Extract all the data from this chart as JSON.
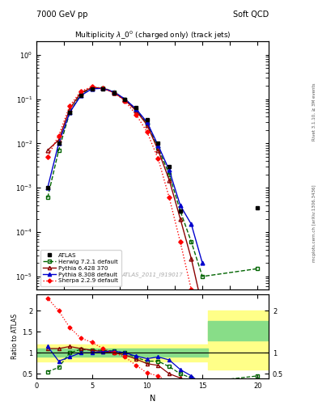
{
  "title_top_left": "7000 GeV pp",
  "title_top_right": "Soft QCD",
  "main_title": "Multiplicity $\\lambda\\_0^0$ (charged only) (track jets)",
  "watermark": "ATLAS_2011_I919017",
  "right_label_top": "Rivet 3.1.10, ≥ 3M events",
  "right_label_bottom": "mcplots.cern.ch [arXiv:1306.3436]",
  "xlabel": "N",
  "ylabel_ratio": "Ratio to ATLAS",
  "atlas_x": [
    1,
    2,
    3,
    4,
    5,
    6,
    7,
    8,
    9,
    10,
    11,
    12,
    13,
    20
  ],
  "atlas_y": [
    0.001,
    0.01,
    0.05,
    0.12,
    0.17,
    0.17,
    0.14,
    0.1,
    0.065,
    0.035,
    0.01,
    0.003,
    0.0003,
    0.00035
  ],
  "herwig_x": [
    1,
    2,
    3,
    4,
    5,
    6,
    7,
    8,
    9,
    10,
    11,
    12,
    13,
    14,
    15,
    20
  ],
  "herwig_y": [
    0.0006,
    0.007,
    0.05,
    0.13,
    0.18,
    0.18,
    0.145,
    0.1,
    0.058,
    0.028,
    0.008,
    0.002,
    0.0003,
    6e-05,
    1e-05,
    1.5e-05
  ],
  "pythia6_x": [
    1,
    2,
    3,
    4,
    5,
    6,
    7,
    8,
    9,
    10,
    11,
    12,
    13,
    14,
    15
  ],
  "pythia6_y": [
    0.007,
    0.012,
    0.06,
    0.14,
    0.18,
    0.175,
    0.14,
    0.095,
    0.055,
    0.026,
    0.007,
    0.0015,
    0.0002,
    2.5e-05,
    2e-06
  ],
  "pythia8_x": [
    1,
    2,
    3,
    4,
    5,
    6,
    7,
    8,
    9,
    10,
    11,
    12,
    13,
    14,
    15
  ],
  "pythia8_y": [
    0.001,
    0.01,
    0.05,
    0.12,
    0.17,
    0.175,
    0.145,
    0.1,
    0.06,
    0.03,
    0.009,
    0.0025,
    0.0004,
    0.00015,
    2e-05
  ],
  "sherpa_x": [
    1,
    2,
    3,
    4,
    5,
    6,
    7,
    8,
    9,
    10,
    11,
    12,
    13,
    14,
    15
  ],
  "sherpa_y": [
    0.005,
    0.015,
    0.07,
    0.15,
    0.19,
    0.175,
    0.14,
    0.09,
    0.045,
    0.018,
    0.0045,
    0.0006,
    6e-05,
    5e-06,
    3e-07
  ],
  "ratio_herwig_x": [
    1,
    2,
    3,
    4,
    5,
    6,
    7,
    8,
    9,
    10,
    11,
    12,
    13,
    14,
    15,
    20
  ],
  "ratio_herwig_y": [
    0.55,
    0.65,
    1.0,
    1.08,
    1.06,
    1.06,
    1.04,
    1.0,
    0.89,
    0.8,
    0.8,
    0.67,
    0.5,
    0.4,
    0.3,
    0.45
  ],
  "ratio_pythia6_x": [
    1,
    2,
    3,
    4,
    5,
    6,
    7,
    8,
    9,
    10,
    11,
    12,
    13,
    14,
    15
  ],
  "ratio_pythia6_y": [
    1.1,
    1.1,
    1.15,
    1.1,
    1.06,
    1.03,
    1.0,
    0.95,
    0.85,
    0.74,
    0.7,
    0.5,
    0.4,
    0.25,
    0.15
  ],
  "ratio_pythia8_x": [
    1,
    2,
    3,
    4,
    5,
    6,
    7,
    8,
    9,
    10,
    11,
    12,
    13,
    14,
    15
  ],
  "ratio_pythia8_y": [
    1.15,
    0.8,
    0.9,
    1.0,
    1.0,
    1.03,
    1.04,
    1.0,
    0.92,
    0.86,
    0.9,
    0.83,
    0.6,
    0.45,
    0.25
  ],
  "ratio_sherpa_x": [
    1,
    2,
    3,
    4,
    5,
    6,
    7,
    8,
    9,
    10,
    11,
    12,
    13,
    14,
    15
  ],
  "ratio_sherpa_y": [
    2.3,
    2.0,
    1.6,
    1.35,
    1.25,
    1.1,
    1.0,
    0.9,
    0.7,
    0.52,
    0.45,
    0.3,
    0.2,
    0.12,
    0.08
  ],
  "colors": {
    "atlas": "#000000",
    "herwig": "#006400",
    "pythia6": "#8b0000",
    "pythia8": "#0000cd",
    "sherpa": "#ff0000"
  },
  "ylim_main": [
    5e-06,
    2.0
  ],
  "xlim": [
    0,
    21
  ],
  "ratio_ylim": [
    0.38,
    2.4
  ],
  "ratio_yticks": [
    0.5,
    1.0,
    1.5,
    2.0
  ],
  "ratio_yticklabels": [
    "0.5",
    "1",
    "1.5",
    "2"
  ]
}
